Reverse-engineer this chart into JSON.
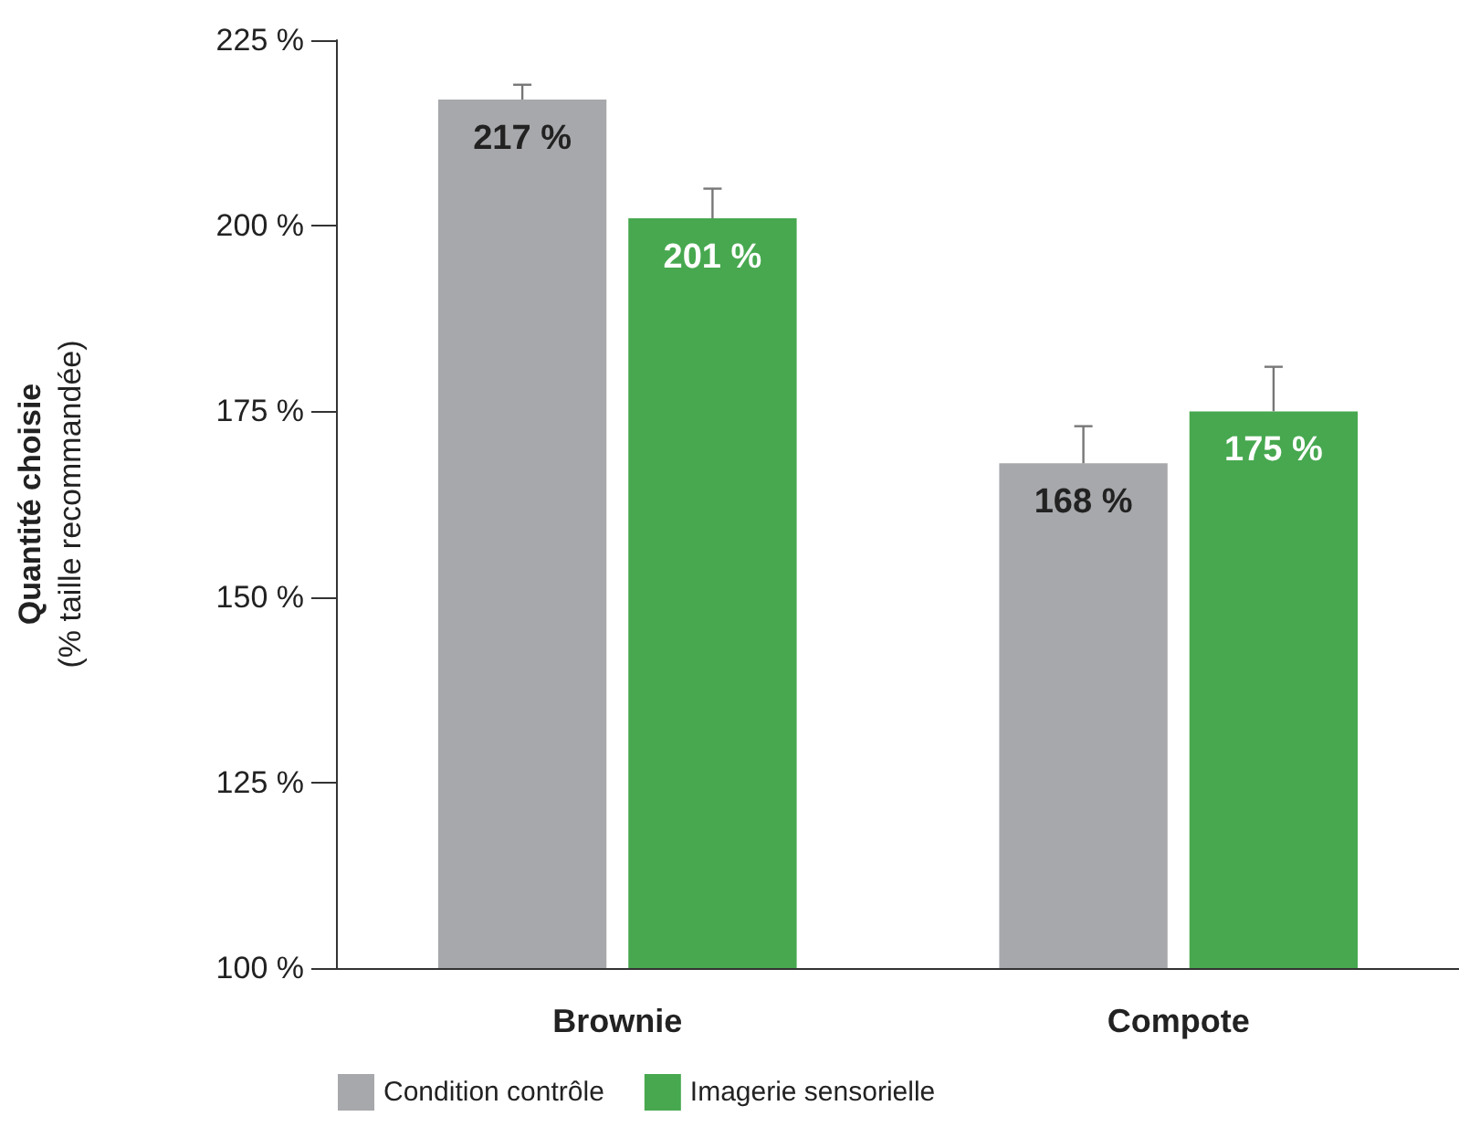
{
  "chart_data": {
    "type": "bar",
    "ylabel": "Quantité choisie\n(% taille recommandée)",
    "categories": [
      "Brownie",
      "Compote"
    ],
    "series": [
      {
        "name": "Condition contrôle",
        "color": "#a7a8ab",
        "values": [
          217,
          168
        ],
        "value_labels": [
          "217 %",
          "168 %"
        ],
        "errors": [
          [
            217,
            219
          ],
          [
            168,
            173
          ]
        ]
      },
      {
        "name": "Imagerie sensorielle",
        "color": "#47a84f",
        "values": [
          201,
          175
        ],
        "value_labels": [
          "201 %",
          "175 %"
        ],
        "errors": [
          [
            201,
            205
          ],
          [
            175,
            181
          ]
        ]
      }
    ],
    "ylim": [
      100,
      225
    ],
    "yticks": [
      {
        "value": 100,
        "label": "100 %"
      },
      {
        "value": 125,
        "label": "125 %"
      },
      {
        "value": 150,
        "label": "150 %"
      },
      {
        "value": 175,
        "label": "175 %"
      },
      {
        "value": 200,
        "label": "200 %"
      },
      {
        "value": 225,
        "label": "225 %"
      }
    ],
    "grid": false,
    "legend": "bottom"
  }
}
